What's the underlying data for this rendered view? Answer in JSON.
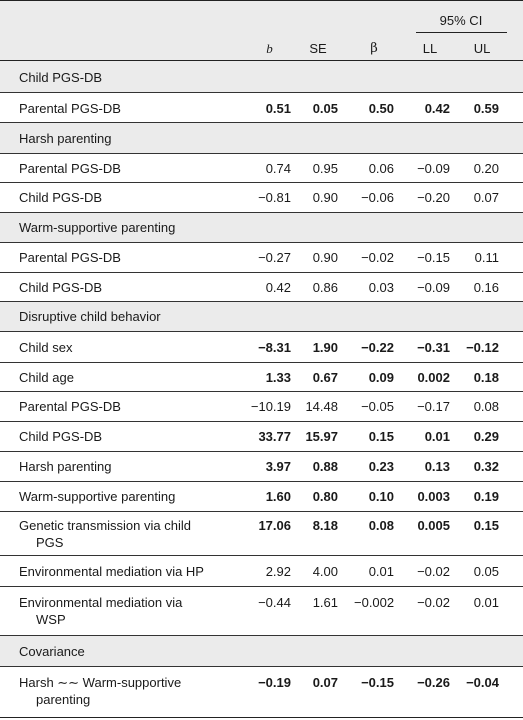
{
  "header": {
    "ci_label": "95% CI",
    "col_b": "b",
    "col_se": "SE",
    "col_beta": "β",
    "col_ll": "LL",
    "col_ul": "UL"
  },
  "rows": [
    {
      "label": "Child PGS-DB"
    },
    {
      "label": "Parental PGS-DB",
      "b": "0.51",
      "se": "0.05",
      "beta": "0.50",
      "ll": "0.42",
      "ul": "0.59"
    },
    {
      "label": "Harsh parenting"
    },
    {
      "label": "Parental PGS-DB",
      "b": "0.74",
      "se": "0.95",
      "beta": "0.06",
      "ll": "−0.09",
      "ul": "0.20"
    },
    {
      "label": "Child PGS-DB",
      "b": "−0.81",
      "se": "0.90",
      "beta": "−0.06",
      "ll": "−0.20",
      "ul": "0.07"
    },
    {
      "label": "Warm-supportive parenting"
    },
    {
      "label": "Parental PGS-DB",
      "b": "−0.27",
      "se": "0.90",
      "beta": "−0.02",
      "ll": "−0.15",
      "ul": "0.11"
    },
    {
      "label": "Child PGS-DB",
      "b": "0.42",
      "se": "0.86",
      "beta": "0.03",
      "ll": "−0.09",
      "ul": "0.16"
    },
    {
      "label": "Disruptive child behavior"
    },
    {
      "label": "Child sex",
      "b": "−8.31",
      "se": "1.90",
      "beta": "−0.22",
      "ll": "−0.31",
      "ul": "−0.12"
    },
    {
      "label": "Child age",
      "b": "1.33",
      "se": "0.67",
      "beta": "0.09",
      "ll": "0.002",
      "ul": "0.18"
    },
    {
      "label": "Parental PGS-DB",
      "b": "−10.19",
      "se": "14.48",
      "beta": "−0.05",
      "ll": "−0.17",
      "ul": "0.08"
    },
    {
      "label": "Child PGS-DB",
      "b": "33.77",
      "se": "15.97",
      "beta": "0.15",
      "ll": "0.01",
      "ul": "0.29"
    },
    {
      "label": "Harsh parenting",
      "b": "3.97",
      "se": "0.88",
      "beta": "0.23",
      "ll": "0.13",
      "ul": "0.32"
    },
    {
      "label": "Warm-supportive parenting",
      "b": "1.60",
      "se": "0.80",
      "beta": "0.10",
      "ll": "0.003",
      "ul": "0.19"
    },
    {
      "label": "Genetic transmission via child",
      "label2": "PGS",
      "b": "17.06",
      "se": "8.18",
      "beta": "0.08",
      "ll": "0.005",
      "ul": "0.15"
    },
    {
      "label": "Environmental mediation via HP",
      "b": "2.92",
      "se": "4.00",
      "beta": "0.01",
      "ll": "−0.02",
      "ul": "0.05"
    },
    {
      "label": "Environmental mediation via",
      "label2": "WSP",
      "b": "−0.44",
      "se": "1.61",
      "beta": "−0.002",
      "ll": "−0.02",
      "ul": "0.01"
    },
    {
      "label": "Covariance"
    },
    {
      "label": "Harsh ∼∼ Warm-supportive",
      "label2": "parenting",
      "b": "−0.19",
      "se": "0.07",
      "beta": "−0.15",
      "ll": "−0.26",
      "ul": "−0.04"
    }
  ]
}
